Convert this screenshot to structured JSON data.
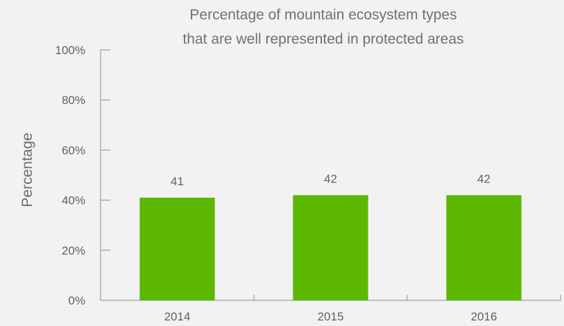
{
  "chart_data": {
    "type": "bar",
    "title_lines": [
      "Percentage of mountain ecosystem types",
      "that are well represented in protected areas"
    ],
    "xlabel": "",
    "ylabel": "Percentage",
    "categories": [
      "2014",
      "2015",
      "2016"
    ],
    "values": [
      41,
      42,
      42
    ],
    "value_labels": [
      "41",
      "42",
      "42"
    ],
    "ylim": [
      0,
      100
    ],
    "yticks": [
      0,
      20,
      40,
      60,
      80,
      100
    ],
    "ytick_labels": [
      "0%",
      "20%",
      "40%",
      "60%",
      "80%",
      "100%"
    ],
    "grid": false,
    "legend": "none",
    "bar_color": "#5cb800",
    "background_color": "#f2f2f2"
  }
}
